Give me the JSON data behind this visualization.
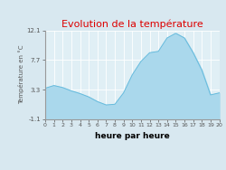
{
  "title": "Evolution de la température",
  "xlabel": "heure par heure",
  "ylabel": "Température en °C",
  "background_color": "#d8e8f0",
  "plot_bg_color": "#e0eff5",
  "title_color": "#dd0000",
  "axis_color": "#999999",
  "label_color": "#555555",
  "fill_color": "#aad8ec",
  "line_color": "#66bbdd",
  "ylim": [
    -1.1,
    12.1
  ],
  "yticks": [
    -1.1,
    3.3,
    7.7,
    12.1
  ],
  "ytick_labels": [
    "-1.1",
    "3.3",
    "7.7",
    "12.1"
  ],
  "xticks": [
    0,
    1,
    2,
    3,
    4,
    5,
    6,
    7,
    8,
    9,
    10,
    11,
    12,
    13,
    14,
    15,
    16,
    17,
    18,
    19,
    20
  ],
  "hours": [
    0,
    1,
    2,
    3,
    4,
    5,
    6,
    7,
    8,
    9,
    10,
    11,
    12,
    13,
    14,
    15,
    16,
    17,
    18,
    19,
    20
  ],
  "temps": [
    3.5,
    3.9,
    3.6,
    3.1,
    2.7,
    2.2,
    1.5,
    1.0,
    1.1,
    2.8,
    5.5,
    7.5,
    8.8,
    9.0,
    11.0,
    11.7,
    11.0,
    8.8,
    6.2,
    2.5,
    2.8
  ]
}
